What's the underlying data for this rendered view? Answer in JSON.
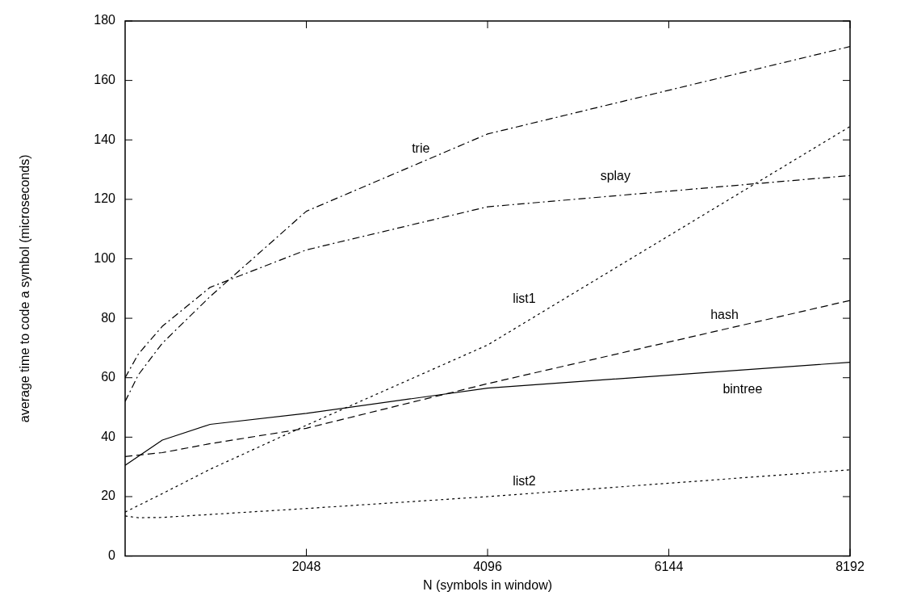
{
  "chart_data": {
    "type": "line",
    "xlabel": "N (symbols in window)",
    "ylabel": "average time to code a symbol (microseconds)",
    "xlim": [
      0,
      8192
    ],
    "xticks": [
      2048,
      4096,
      6144,
      8192
    ],
    "ylim": [
      0,
      180
    ],
    "yticks": [
      0,
      20,
      40,
      60,
      80,
      100,
      120,
      140,
      160,
      180
    ],
    "grid": false,
    "legend": false,
    "marker": "none",
    "series": [
      {
        "name": "bintree",
        "color": "#000000",
        "line_style": "solid",
        "x": [
          0,
          420,
          960,
          2048,
          4096,
          8192
        ],
        "values": [
          30.5,
          39,
          44.3,
          48,
          56.5,
          65.2
        ]
      },
      {
        "name": "hash",
        "color": "#000000",
        "line_style": "dashed",
        "x": [
          0,
          420,
          960,
          2048,
          4096,
          8192
        ],
        "values": [
          33.5,
          34.8,
          37.8,
          43,
          58,
          86
        ]
      },
      {
        "name": "list1",
        "color": "#000000",
        "line_style": "dotted",
        "x": [
          0,
          420,
          960,
          2048,
          4096,
          8192
        ],
        "values": [
          14.8,
          21,
          29.2,
          44,
          71,
          144.5
        ]
      },
      {
        "name": "list2",
        "color": "#000000",
        "line_style": "dotted",
        "x": [
          0,
          150,
          420,
          960,
          2048,
          4096,
          8192
        ],
        "values": [
          13.5,
          12.9,
          13,
          14,
          16,
          20,
          29
        ]
      },
      {
        "name": "splay",
        "color": "#000000",
        "line_style": "dashdot",
        "x": [
          0,
          150,
          420,
          960,
          2048,
          4096,
          8192
        ],
        "values": [
          60,
          68,
          77.3,
          90.4,
          103,
          117.5,
          128
        ]
      },
      {
        "name": "trie",
        "color": "#000000",
        "line_style": "dashdot",
        "x": [
          0,
          150,
          420,
          960,
          2048,
          4096,
          8192
        ],
        "values": [
          52,
          61,
          71.6,
          87.3,
          116,
          142,
          171.4
        ]
      }
    ]
  }
}
